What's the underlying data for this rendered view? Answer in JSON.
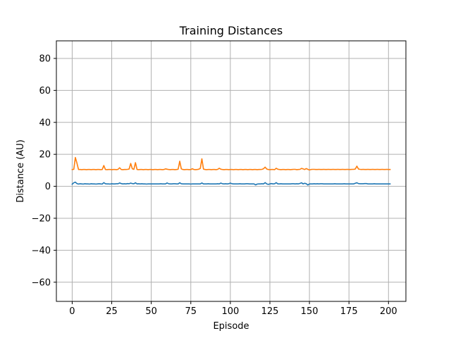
{
  "chart_data": {
    "type": "line",
    "title": "Training Distances",
    "xlabel": "Episode",
    "ylabel": "Distance (AU)",
    "xlim": [
      -10,
      211
    ],
    "ylim": [
      -72,
      91
    ],
    "xticks": [
      0,
      25,
      50,
      75,
      100,
      125,
      150,
      175,
      200
    ],
    "yticks": [
      -60,
      -40,
      -20,
      0,
      20,
      40,
      60,
      80
    ],
    "xtick_labels": [
      "0",
      "25",
      "50",
      "75",
      "100",
      "125",
      "150",
      "175",
      "200"
    ],
    "ytick_labels": [
      "−60",
      "−40",
      "−20",
      "0",
      "20",
      "40",
      "60",
      "80"
    ],
    "grid": true,
    "legend": "none",
    "series": [
      {
        "color": "#1f77b4",
        "x": [
          0,
          1,
          2,
          3,
          4,
          5,
          6,
          7,
          8,
          9,
          10,
          11,
          12,
          13,
          14,
          15,
          16,
          17,
          18,
          19,
          20,
          21,
          22,
          23,
          24,
          25,
          26,
          27,
          28,
          29,
          30,
          31,
          32,
          33,
          34,
          35,
          36,
          37,
          38,
          39,
          40,
          41,
          42,
          43,
          44,
          45,
          46,
          47,
          48,
          49,
          50,
          51,
          52,
          53,
          54,
          55,
          56,
          57,
          58,
          59,
          60,
          61,
          62,
          63,
          64,
          65,
          66,
          67,
          68,
          69,
          70,
          71,
          72,
          73,
          74,
          75,
          76,
          77,
          78,
          79,
          80,
          81,
          82,
          83,
          84,
          85,
          86,
          87,
          88,
          89,
          90,
          91,
          92,
          93,
          94,
          95,
          96,
          97,
          98,
          99,
          100,
          101,
          102,
          103,
          104,
          105,
          106,
          107,
          108,
          109,
          110,
          111,
          112,
          113,
          114,
          115,
          116,
          117,
          118,
          119,
          120,
          121,
          122,
          123,
          124,
          125,
          126,
          127,
          128,
          129,
          130,
          131,
          132,
          133,
          134,
          135,
          136,
          137,
          138,
          139,
          140,
          141,
          142,
          143,
          144,
          145,
          146,
          147,
          148,
          149,
          150,
          151,
          152,
          153,
          154,
          155,
          156,
          157,
          158,
          159,
          160,
          161,
          162,
          163,
          164,
          165,
          166,
          167,
          168,
          169,
          170,
          171,
          172,
          173,
          174,
          175,
          176,
          177,
          178,
          179,
          180,
          181,
          182,
          183,
          184,
          185,
          186,
          187,
          188,
          189,
          190,
          191,
          192,
          193,
          194,
          195,
          196,
          197,
          198,
          199,
          200,
          201
        ],
        "values": [
          1.3,
          2.2,
          2.6,
          1.7,
          1.4,
          1.6,
          1.5,
          1.4,
          1.6,
          1.5,
          1.5,
          1.4,
          1.6,
          1.5,
          1.5,
          1.4,
          1.5,
          1.6,
          1.5,
          1.4,
          2.3,
          1.6,
          1.5,
          1.5,
          1.4,
          1.6,
          1.5,
          1.5,
          1.6,
          1.6,
          2.1,
          1.7,
          1.5,
          1.6,
          1.5,
          1.7,
          1.6,
          2.0,
          1.7,
          1.6,
          2.2,
          1.5,
          1.6,
          1.5,
          1.6,
          1.5,
          1.5,
          1.4,
          1.5,
          1.5,
          1.5,
          1.5,
          1.5,
          1.5,
          1.5,
          1.5,
          1.6,
          1.5,
          1.5,
          1.5,
          2.1,
          1.6,
          1.5,
          1.5,
          1.6,
          1.6,
          1.5,
          1.5,
          2.2,
          1.6,
          1.5,
          1.5,
          1.5,
          1.5,
          1.5,
          1.4,
          1.5,
          1.5,
          1.5,
          1.5,
          1.5,
          1.5,
          2.1,
          1.5,
          1.5,
          1.5,
          1.6,
          1.5,
          1.5,
          1.5,
          1.5,
          1.5,
          1.6,
          1.5,
          2.0,
          1.6,
          1.5,
          1.6,
          1.5,
          1.6,
          2.0,
          1.6,
          1.5,
          1.5,
          1.5,
          1.5,
          1.6,
          1.5,
          1.5,
          1.5,
          1.6,
          1.6,
          1.5,
          1.5,
          1.5,
          1.5,
          0.9,
          1.4,
          1.5,
          1.5,
          1.6,
          1.5,
          2.3,
          1.5,
          1.2,
          1.5,
          1.7,
          1.5,
          1.6,
          2.3,
          1.5,
          1.5,
          1.6,
          1.5,
          1.5,
          1.5,
          1.5,
          1.5,
          1.5,
          1.6,
          1.6,
          1.5,
          1.6,
          1.5,
          1.8,
          2.2,
          1.5,
          1.9,
          1.6,
          0.8,
          1.5,
          1.5,
          1.5,
          1.6,
          1.5,
          1.6,
          1.5,
          1.6,
          1.6,
          1.5,
          1.5,
          1.5,
          1.5,
          1.5,
          1.5,
          1.5,
          1.6,
          1.5,
          1.5,
          1.5,
          1.5,
          1.5,
          1.6,
          1.5,
          1.5,
          1.5,
          1.5,
          1.5,
          1.5,
          1.9,
          2.2,
          1.7,
          1.6,
          1.6,
          1.6,
          1.7,
          1.7,
          1.5,
          1.5,
          1.5,
          1.5,
          1.6,
          1.5,
          1.5,
          1.5,
          1.5,
          1.5,
          1.5,
          1.5,
          1.5,
          1.5,
          1.5
        ]
      },
      {
        "color": "#ff7f0e",
        "x": [
          0,
          1,
          2,
          3,
          4,
          5,
          6,
          7,
          8,
          9,
          10,
          11,
          12,
          13,
          14,
          15,
          16,
          17,
          18,
          19,
          20,
          21,
          22,
          23,
          24,
          25,
          26,
          27,
          28,
          29,
          30,
          31,
          32,
          33,
          34,
          35,
          36,
          37,
          38,
          39,
          40,
          41,
          42,
          43,
          44,
          45,
          46,
          47,
          48,
          49,
          50,
          51,
          52,
          53,
          54,
          55,
          56,
          57,
          58,
          59,
          60,
          61,
          62,
          63,
          64,
          65,
          66,
          67,
          68,
          69,
          70,
          71,
          72,
          73,
          74,
          75,
          76,
          77,
          78,
          79,
          80,
          81,
          82,
          83,
          84,
          85,
          86,
          87,
          88,
          89,
          90,
          91,
          92,
          93,
          94,
          95,
          96,
          97,
          98,
          99,
          100,
          101,
          102,
          103,
          104,
          105,
          106,
          107,
          108,
          109,
          110,
          111,
          112,
          113,
          114,
          115,
          116,
          117,
          118,
          119,
          120,
          121,
          122,
          123,
          124,
          125,
          126,
          127,
          128,
          129,
          130,
          131,
          132,
          133,
          134,
          135,
          136,
          137,
          138,
          139,
          140,
          141,
          142,
          143,
          144,
          145,
          146,
          147,
          148,
          149,
          150,
          151,
          152,
          153,
          154,
          155,
          156,
          157,
          158,
          159,
          160,
          161,
          162,
          163,
          164,
          165,
          166,
          167,
          168,
          169,
          170,
          171,
          172,
          173,
          174,
          175,
          176,
          177,
          178,
          179,
          180,
          181,
          182,
          183,
          184,
          185,
          186,
          187,
          188,
          189,
          190,
          191,
          192,
          193,
          194,
          195,
          196,
          197,
          198,
          199,
          200,
          201
        ],
        "values": [
          10.5,
          10.6,
          18.0,
          14.5,
          10.5,
          10.5,
          10.4,
          10.5,
          10.5,
          10.4,
          10.5,
          10.5,
          10.4,
          10.5,
          10.5,
          10.4,
          10.5,
          10.5,
          10.4,
          10.5,
          13.0,
          10.5,
          10.4,
          10.5,
          10.5,
          10.4,
          10.5,
          10.5,
          10.4,
          10.6,
          11.6,
          10.5,
          10.4,
          10.5,
          10.5,
          10.6,
          10.8,
          14.3,
          11.0,
          10.6,
          14.8,
          10.5,
          10.4,
          10.5,
          10.5,
          10.4,
          10.5,
          10.5,
          10.4,
          10.5,
          10.5,
          10.4,
          10.5,
          10.5,
          10.4,
          10.5,
          10.5,
          10.4,
          10.5,
          10.9,
          10.7,
          10.5,
          10.4,
          10.5,
          10.5,
          10.4,
          10.5,
          10.7,
          15.7,
          10.9,
          10.5,
          10.4,
          10.5,
          10.5,
          10.4,
          10.5,
          11.0,
          10.5,
          10.4,
          10.5,
          10.7,
          11.2,
          17.2,
          10.8,
          10.5,
          10.4,
          10.5,
          10.5,
          10.4,
          10.5,
          10.5,
          10.4,
          10.6,
          11.3,
          10.7,
          10.5,
          10.4,
          10.5,
          10.5,
          10.4,
          10.5,
          10.5,
          10.4,
          10.5,
          10.5,
          10.4,
          10.5,
          10.5,
          10.4,
          10.5,
          10.5,
          10.4,
          10.5,
          10.5,
          10.4,
          10.5,
          10.5,
          10.4,
          10.5,
          10.5,
          10.6,
          11.0,
          12.0,
          10.8,
          10.5,
          10.4,
          10.5,
          10.5,
          10.4,
          11.3,
          10.7,
          10.5,
          10.4,
          10.5,
          10.5,
          10.4,
          10.5,
          10.5,
          10.4,
          10.5,
          10.6,
          10.6,
          10.4,
          10.5,
          10.6,
          11.2,
          10.9,
          10.5,
          11.1,
          10.6,
          10.2,
          10.5,
          10.6,
          10.6,
          10.5,
          10.5,
          10.6,
          10.5,
          10.5,
          10.6,
          10.5,
          10.5,
          10.6,
          10.5,
          10.5,
          10.6,
          10.5,
          10.5,
          10.6,
          10.5,
          10.5,
          10.6,
          10.5,
          10.5,
          10.6,
          10.5,
          10.5,
          10.6,
          10.6,
          10.8,
          12.6,
          10.8,
          10.6,
          10.5,
          10.6,
          10.5,
          10.5,
          10.6,
          10.5,
          10.5,
          10.6,
          10.5,
          10.5,
          10.6,
          10.5,
          10.5,
          10.6,
          10.5,
          10.5,
          10.6,
          10.5,
          10.5
        ]
      }
    ]
  }
}
